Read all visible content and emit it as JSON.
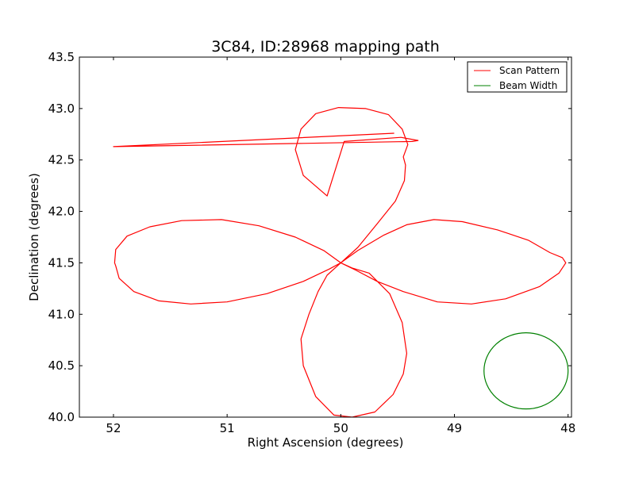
{
  "chart_data": {
    "type": "line",
    "title": "3C84, ID:28968 mapping path",
    "xlabel": "Right Ascension (degrees)",
    "ylabel": "Declination (degrees)",
    "xlim": [
      52.3,
      47.97
    ],
    "ylim": [
      40.0,
      43.5
    ],
    "x_reversed": true,
    "xticks": [
      52,
      51,
      50,
      49,
      48
    ],
    "xtick_labels": [
      "52",
      "51",
      "50",
      "49",
      "48"
    ],
    "yticks": [
      40.0,
      40.5,
      41.0,
      41.5,
      42.0,
      42.5,
      43.0,
      43.5
    ],
    "ytick_labels": [
      "40.0",
      "40.5",
      "41.0",
      "41.5",
      "42.0",
      "42.5",
      "43.0",
      "43.5"
    ],
    "grid": false,
    "legend_position": "top-right",
    "series": [
      {
        "name": "Scan Pattern",
        "color": "#ff0000",
        "x": [
          50.0,
          49.85,
          49.62,
          49.42,
          49.18,
          48.93,
          48.62,
          48.35,
          48.16,
          48.05,
          48.02,
          48.08,
          48.25,
          48.55,
          48.85,
          49.15,
          49.45,
          49.68,
          49.87,
          50.0,
          50.12,
          50.2,
          50.28,
          50.35,
          50.33,
          50.22,
          50.06,
          49.9,
          49.7,
          49.54,
          49.45,
          49.42,
          49.46,
          49.57,
          49.75,
          49.9,
          50.0,
          50.15,
          50.4,
          50.72,
          51.05,
          51.4,
          51.68,
          51.88,
          51.98,
          51.99,
          51.98,
          51.95,
          51.82,
          51.6,
          51.32,
          51.0,
          50.65,
          50.33,
          50.1,
          50.0,
          49.85,
          49.68,
          49.52,
          49.44,
          49.43,
          49.45,
          49.41,
          49.46,
          49.58,
          49.78,
          50.02,
          50.22,
          50.35,
          50.4,
          50.33,
          50.12,
          49.97,
          49.47,
          49.32,
          49.37,
          52.0,
          49.53
        ],
        "y": [
          41.5,
          41.62,
          41.77,
          41.87,
          41.92,
          41.9,
          41.82,
          41.72,
          41.6,
          41.55,
          41.5,
          41.4,
          41.27,
          41.15,
          41.1,
          41.12,
          41.22,
          41.32,
          41.43,
          41.5,
          41.38,
          41.22,
          41.0,
          40.76,
          40.5,
          40.2,
          40.02,
          40.0,
          40.05,
          40.22,
          40.42,
          40.62,
          40.92,
          41.2,
          41.4,
          41.45,
          41.5,
          41.62,
          41.75,
          41.86,
          41.92,
          41.91,
          41.85,
          41.76,
          41.63,
          41.5,
          41.47,
          41.35,
          41.22,
          41.13,
          41.1,
          41.12,
          41.2,
          41.32,
          41.44,
          41.5,
          41.65,
          41.88,
          42.1,
          42.3,
          42.45,
          42.53,
          42.65,
          42.8,
          42.94,
          43.0,
          43.01,
          42.95,
          42.8,
          42.6,
          42.35,
          42.15,
          42.68,
          42.72,
          42.69,
          42.68,
          42.63,
          42.76
        ]
      },
      {
        "name": "Beam Width",
        "color": "#008000",
        "shape": "circle",
        "center_x": 48.37,
        "center_y": 40.45,
        "radius": 0.37
      }
    ]
  }
}
